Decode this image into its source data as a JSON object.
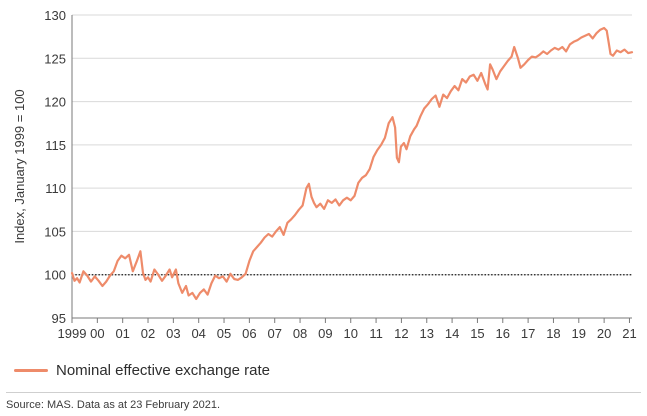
{
  "chart_data": {
    "type": "line",
    "title": "",
    "xlabel": "",
    "ylabel": "Index, January 1999 = 100",
    "xlim": [
      1999,
      2021.1
    ],
    "ylim": [
      95,
      130
    ],
    "yticks": [
      95,
      100,
      105,
      110,
      115,
      120,
      125,
      130
    ],
    "xticks": [
      {
        "x": 1999,
        "label": "1999"
      },
      {
        "x": 2000,
        "label": "00"
      },
      {
        "x": 2001,
        "label": "01"
      },
      {
        "x": 2002,
        "label": "02"
      },
      {
        "x": 2003,
        "label": "03"
      },
      {
        "x": 2004,
        "label": "04"
      },
      {
        "x": 2005,
        "label": "05"
      },
      {
        "x": 2006,
        "label": "06"
      },
      {
        "x": 2007,
        "label": "07"
      },
      {
        "x": 2008,
        "label": "08"
      },
      {
        "x": 2009,
        "label": "09"
      },
      {
        "x": 2010,
        "label": "10"
      },
      {
        "x": 2011,
        "label": "11"
      },
      {
        "x": 2012,
        "label": "12"
      },
      {
        "x": 2013,
        "label": "13"
      },
      {
        "x": 2014,
        "label": "14"
      },
      {
        "x": 2015,
        "label": "15"
      },
      {
        "x": 2016,
        "label": "16"
      },
      {
        "x": 2017,
        "label": "17"
      },
      {
        "x": 2018,
        "label": "18"
      },
      {
        "x": 2019,
        "label": "19"
      },
      {
        "x": 2020,
        "label": "20"
      },
      {
        "x": 2021,
        "label": "21"
      }
    ],
    "reference_line": {
      "y": 100,
      "style": "dotted"
    },
    "series": [
      {
        "name": "Nominal effective exchange rate",
        "color": "#ee8b6a",
        "points": [
          [
            1999.0,
            100.2
          ],
          [
            1999.1,
            99.3
          ],
          [
            1999.2,
            99.6
          ],
          [
            1999.3,
            99.1
          ],
          [
            1999.45,
            100.4
          ],
          [
            1999.6,
            99.9
          ],
          [
            1999.75,
            99.2
          ],
          [
            1999.9,
            99.8
          ],
          [
            2000.05,
            99.3
          ],
          [
            2000.2,
            98.7
          ],
          [
            2000.35,
            99.2
          ],
          [
            2000.5,
            99.9
          ],
          [
            2000.65,
            100.4
          ],
          [
            2000.8,
            101.6
          ],
          [
            2000.95,
            102.2
          ],
          [
            2001.1,
            101.9
          ],
          [
            2001.25,
            102.3
          ],
          [
            2001.4,
            100.4
          ],
          [
            2001.55,
            101.5
          ],
          [
            2001.7,
            102.7
          ],
          [
            2001.8,
            100.2
          ],
          [
            2001.9,
            99.4
          ],
          [
            2002.0,
            99.7
          ],
          [
            2002.1,
            99.2
          ],
          [
            2002.25,
            100.6
          ],
          [
            2002.4,
            100.0
          ],
          [
            2002.55,
            99.3
          ],
          [
            2002.7,
            99.9
          ],
          [
            2002.85,
            100.6
          ],
          [
            2002.95,
            99.7
          ],
          [
            2003.1,
            100.6
          ],
          [
            2003.2,
            99.0
          ],
          [
            2003.35,
            97.9
          ],
          [
            2003.5,
            98.7
          ],
          [
            2003.6,
            97.6
          ],
          [
            2003.75,
            97.9
          ],
          [
            2003.9,
            97.2
          ],
          [
            2004.05,
            97.9
          ],
          [
            2004.2,
            98.3
          ],
          [
            2004.35,
            97.7
          ],
          [
            2004.5,
            99.0
          ],
          [
            2004.65,
            99.9
          ],
          [
            2004.8,
            99.6
          ],
          [
            2004.95,
            99.8
          ],
          [
            2005.1,
            99.2
          ],
          [
            2005.25,
            100.1
          ],
          [
            2005.4,
            99.5
          ],
          [
            2005.55,
            99.4
          ],
          [
            2005.7,
            99.7
          ],
          [
            2005.85,
            100.1
          ],
          [
            2006.0,
            101.6
          ],
          [
            2006.15,
            102.7
          ],
          [
            2006.3,
            103.2
          ],
          [
            2006.45,
            103.7
          ],
          [
            2006.6,
            104.3
          ],
          [
            2006.75,
            104.7
          ],
          [
            2006.9,
            104.4
          ],
          [
            2007.05,
            105.0
          ],
          [
            2007.2,
            105.5
          ],
          [
            2007.35,
            104.6
          ],
          [
            2007.5,
            106.0
          ],
          [
            2007.65,
            106.4
          ],
          [
            2007.8,
            106.9
          ],
          [
            2007.95,
            107.5
          ],
          [
            2008.1,
            108.0
          ],
          [
            2008.25,
            110.0
          ],
          [
            2008.35,
            110.5
          ],
          [
            2008.45,
            109.0
          ],
          [
            2008.55,
            108.3
          ],
          [
            2008.65,
            107.8
          ],
          [
            2008.8,
            108.2
          ],
          [
            2008.95,
            107.6
          ],
          [
            2009.1,
            108.6
          ],
          [
            2009.25,
            108.3
          ],
          [
            2009.4,
            108.7
          ],
          [
            2009.55,
            108.0
          ],
          [
            2009.7,
            108.6
          ],
          [
            2009.85,
            108.9
          ],
          [
            2010.0,
            108.6
          ],
          [
            2010.15,
            109.1
          ],
          [
            2010.3,
            110.6
          ],
          [
            2010.45,
            111.2
          ],
          [
            2010.6,
            111.5
          ],
          [
            2010.75,
            112.2
          ],
          [
            2010.9,
            113.6
          ],
          [
            2011.05,
            114.4
          ],
          [
            2011.2,
            115.0
          ],
          [
            2011.35,
            115.8
          ],
          [
            2011.5,
            117.5
          ],
          [
            2011.65,
            118.2
          ],
          [
            2011.75,
            117.0
          ],
          [
            2011.82,
            113.5
          ],
          [
            2011.9,
            113.0
          ],
          [
            2011.98,
            114.8
          ],
          [
            2012.1,
            115.2
          ],
          [
            2012.2,
            114.5
          ],
          [
            2012.35,
            116.0
          ],
          [
            2012.5,
            116.8
          ],
          [
            2012.6,
            117.2
          ],
          [
            2012.75,
            118.3
          ],
          [
            2012.9,
            119.2
          ],
          [
            2013.05,
            119.7
          ],
          [
            2013.2,
            120.3
          ],
          [
            2013.35,
            120.7
          ],
          [
            2013.5,
            119.4
          ],
          [
            2013.65,
            120.8
          ],
          [
            2013.8,
            120.4
          ],
          [
            2013.95,
            121.2
          ],
          [
            2014.1,
            121.8
          ],
          [
            2014.25,
            121.3
          ],
          [
            2014.4,
            122.6
          ],
          [
            2014.55,
            122.2
          ],
          [
            2014.7,
            122.9
          ],
          [
            2014.85,
            123.1
          ],
          [
            2015.0,
            122.4
          ],
          [
            2015.15,
            123.3
          ],
          [
            2015.3,
            122.1
          ],
          [
            2015.4,
            121.4
          ],
          [
            2015.5,
            124.3
          ],
          [
            2015.6,
            123.7
          ],
          [
            2015.75,
            122.6
          ],
          [
            2015.9,
            123.5
          ],
          [
            2016.05,
            124.1
          ],
          [
            2016.2,
            124.7
          ],
          [
            2016.35,
            125.2
          ],
          [
            2016.45,
            126.3
          ],
          [
            2016.6,
            125.0
          ],
          [
            2016.7,
            123.9
          ],
          [
            2016.85,
            124.3
          ],
          [
            2017.0,
            124.8
          ],
          [
            2017.15,
            125.2
          ],
          [
            2017.3,
            125.1
          ],
          [
            2017.45,
            125.4
          ],
          [
            2017.6,
            125.8
          ],
          [
            2017.75,
            125.5
          ],
          [
            2017.9,
            125.9
          ],
          [
            2018.05,
            126.2
          ],
          [
            2018.2,
            126.0
          ],
          [
            2018.35,
            126.3
          ],
          [
            2018.5,
            125.8
          ],
          [
            2018.65,
            126.6
          ],
          [
            2018.8,
            126.9
          ],
          [
            2018.95,
            127.1
          ],
          [
            2019.1,
            127.4
          ],
          [
            2019.25,
            127.6
          ],
          [
            2019.4,
            127.8
          ],
          [
            2019.55,
            127.3
          ],
          [
            2019.7,
            127.9
          ],
          [
            2019.85,
            128.3
          ],
          [
            2020.0,
            128.5
          ],
          [
            2020.1,
            128.2
          ],
          [
            2020.18,
            126.8
          ],
          [
            2020.25,
            125.5
          ],
          [
            2020.35,
            125.3
          ],
          [
            2020.5,
            125.9
          ],
          [
            2020.65,
            125.7
          ],
          [
            2020.8,
            126.0
          ],
          [
            2020.95,
            125.6
          ],
          [
            2021.1,
            125.7
          ]
        ]
      }
    ],
    "legend": {
      "placement": "bottom-left"
    }
  },
  "legend": {
    "label": "Nominal effective exchange rate",
    "color": "#ee8b6a"
  },
  "source_note": "Source: MAS. Data as at 23 February 2021."
}
